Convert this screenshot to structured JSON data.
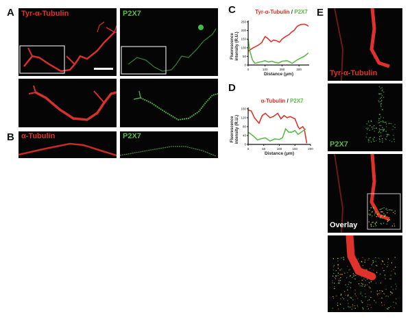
{
  "panels": {
    "A": {
      "letter": "A",
      "left_label": "Tyr-α-Tubulin",
      "right_label": "P2X7"
    },
    "B": {
      "letter": "B",
      "left_label": "α-Tubulin",
      "right_label": "P2X7"
    },
    "C": {
      "letter": "C"
    },
    "D": {
      "letter": "D"
    },
    "E": {
      "letter": "E",
      "labels": [
        "Tyr-α-Tubulin",
        "P2X7",
        "Overlay"
      ]
    }
  },
  "colors": {
    "red": "#e0312b",
    "green": "#5cb84a"
  },
  "chart_data": [
    {
      "type": "line",
      "title_parts": [
        "Tyr-α-Tubulin",
        " / ",
        "P2X7"
      ],
      "xlabel": "Distance (μm)",
      "ylabel": "Fluorescence intensity (R.U.)",
      "xlim": [
        0,
        360
      ],
      "ylim": [
        0,
        250
      ],
      "xticks": [
        0,
        100,
        200,
        300
      ],
      "yticks": [
        0,
        50,
        100,
        150,
        200,
        250
      ],
      "series": [
        {
          "name": "Tyr-α-Tubulin",
          "color": "#e0312b",
          "x": [
            0,
            15,
            30,
            60,
            80,
            100,
            115,
            135,
            150,
            170,
            185,
            200,
            220,
            240,
            255,
            270,
            290,
            310,
            330,
            345,
            355
          ],
          "y": [
            80,
            90,
            100,
            115,
            130,
            165,
            155,
            135,
            145,
            140,
            132,
            150,
            165,
            175,
            190,
            200,
            225,
            235,
            237,
            232,
            225
          ]
        },
        {
          "name": "P2X7",
          "color": "#5cb84a",
          "x": [
            0,
            10,
            25,
            40,
            60,
            80,
            100,
            120,
            140,
            160,
            180,
            200,
            230,
            260,
            290,
            310,
            330,
            355
          ],
          "y": [
            150,
            80,
            30,
            10,
            15,
            20,
            25,
            18,
            22,
            15,
            12,
            22,
            25,
            10,
            30,
            40,
            50,
            70
          ]
        }
      ]
    },
    {
      "type": "line",
      "title_parts": [
        "α-Tubulin",
        " / ",
        "P2X7"
      ],
      "xlabel": "Distance (μm)",
      "ylabel": "Fluorescence intensity (R.U.)",
      "xlim": [
        0,
        200
      ],
      "ylim": [
        0,
        160
      ],
      "xticks": [
        0,
        50,
        100,
        150,
        200
      ],
      "yticks": [
        0,
        40,
        80,
        120,
        160
      ],
      "series": [
        {
          "name": "α-Tubulin",
          "color": "#e0312b",
          "x": [
            0,
            10,
            20,
            35,
            45,
            55,
            70,
            80,
            95,
            105,
            115,
            125,
            135,
            150,
            160,
            165,
            175,
            180,
            188
          ],
          "y": [
            155,
            150,
            120,
            95,
            130,
            140,
            120,
            125,
            140,
            115,
            130,
            120,
            125,
            115,
            80,
            70,
            80,
            70,
            5
          ]
        },
        {
          "name": "P2X7",
          "color": "#5cb84a",
          "x": [
            0,
            15,
            30,
            40,
            55,
            70,
            85,
            100,
            110,
            120,
            130,
            140,
            150,
            160,
            170,
            185
          ],
          "y": [
            55,
            40,
            20,
            25,
            30,
            15,
            25,
            22,
            30,
            70,
            55,
            55,
            62,
            45,
            55,
            70
          ]
        }
      ]
    }
  ]
}
